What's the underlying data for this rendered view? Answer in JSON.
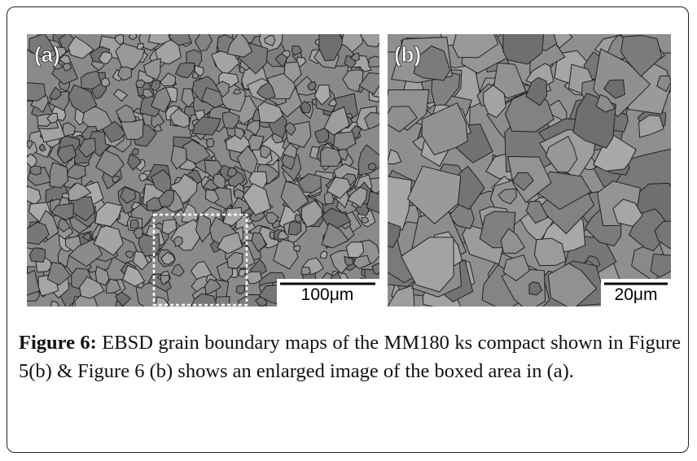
{
  "figure": {
    "panels": [
      {
        "label": "(a)",
        "scale_bar": "100μm"
      },
      {
        "label": "(b)",
        "scale_bar": "20μm"
      }
    ],
    "caption": {
      "label": "Figure 6:",
      "text": "EBSD grain boundary maps of the MM180 ks compact shown in Figure 5(b) & Figure 6 (b) shows an enlarged image of the boxed area in (a)."
    }
  }
}
